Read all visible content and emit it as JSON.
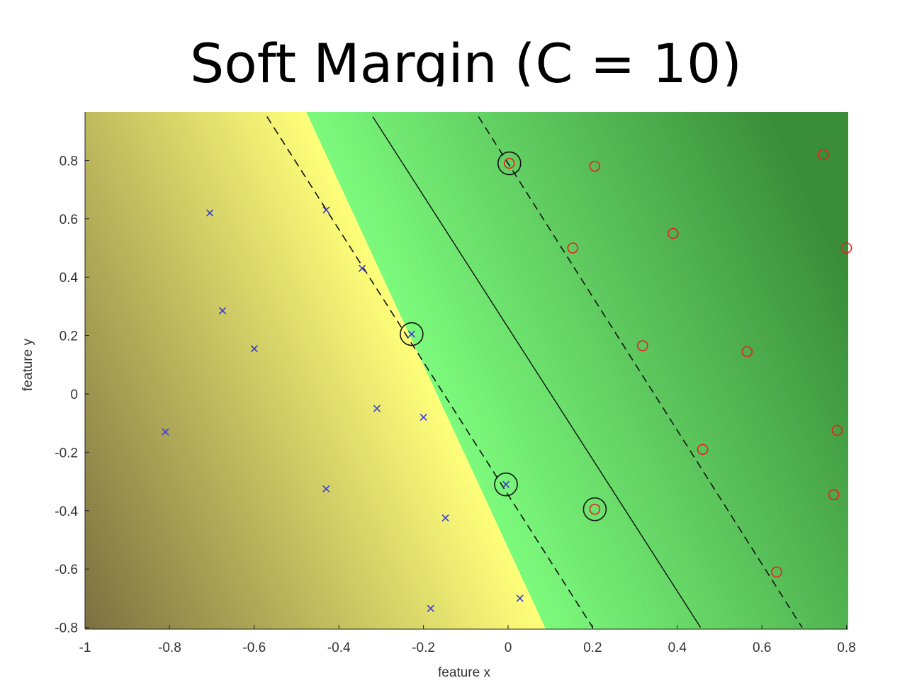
{
  "slide": {
    "title": "Soft Margin (C = 10)"
  },
  "chart_data": {
    "type": "scatter",
    "title": "Soft Margin (C = 10)",
    "xlabel": "feature x",
    "ylabel": "feature y",
    "xlim": [
      -1,
      0.8
    ],
    "ylim": [
      -0.8,
      0.95
    ],
    "xticks": [
      -1,
      -0.8,
      -0.6,
      -0.4,
      -0.2,
      0,
      0.2,
      0.4,
      0.6,
      0.8
    ],
    "yticks": [
      -0.8,
      -0.6,
      -0.4,
      -0.2,
      0,
      0.2,
      0.4,
      0.6,
      0.8
    ],
    "tick_labels_x": [
      "-1",
      "-0.8",
      "-0.6",
      "-0.4",
      "-0.2",
      "0",
      "0.2",
      "0.4",
      "0.6",
      "0.8"
    ],
    "tick_labels_y": [
      "-0.8",
      "-0.6",
      "-0.4",
      "-0.2",
      "0",
      "0.2",
      "0.4",
      "0.6",
      "0.8"
    ],
    "grid": false,
    "series": [
      {
        "marker": "x",
        "color": "#3a3ad0",
        "points": [
          [
            -0.705,
            0.62
          ],
          [
            -0.43,
            0.63
          ],
          [
            -0.345,
            0.43
          ],
          [
            -0.675,
            0.285
          ],
          [
            -0.6,
            0.155
          ],
          [
            -0.228,
            0.205
          ],
          [
            -0.31,
            -0.05
          ],
          [
            -0.2,
            -0.08
          ],
          [
            -0.81,
            -0.13
          ],
          [
            -0.43,
            -0.325
          ],
          [
            -0.005,
            -0.31
          ],
          [
            -0.148,
            -0.425
          ],
          [
            -0.183,
            -0.735
          ],
          [
            0.028,
            -0.7
          ]
        ]
      },
      {
        "marker": "o",
        "color": "#e82020",
        "points": [
          [
            0.003,
            0.79
          ],
          [
            0.205,
            0.78
          ],
          [
            0.39,
            0.55
          ],
          [
            0.153,
            0.5
          ],
          [
            0.745,
            0.82
          ],
          [
            0.8,
            0.5
          ],
          [
            0.318,
            0.165
          ],
          [
            0.565,
            0.145
          ],
          [
            0.778,
            -0.125
          ],
          [
            0.46,
            -0.19
          ],
          [
            0.77,
            -0.345
          ],
          [
            0.205,
            -0.395
          ],
          [
            0.635,
            -0.61
          ]
        ]
      }
    ],
    "support_vectors": [
      [
        0.003,
        0.79
      ],
      [
        -0.228,
        0.205
      ],
      [
        -0.005,
        -0.31
      ],
      [
        0.205,
        -0.395
      ]
    ],
    "decision_boundary": {
      "y_top_x": -0.32,
      "y_bottom_x": 0.455,
      "style": "solid"
    },
    "margin_lower": {
      "y_top_x": -0.57,
      "y_bottom_x": 0.2,
      "style": "dashed"
    },
    "margin_upper": {
      "y_top_x": -0.07,
      "y_bottom_x": 0.695,
      "style": "dashed"
    },
    "colors": {
      "far_negative": "#7a7040",
      "near_boundary_negative": "#ffff7a",
      "near_boundary_positive": "#7cfa7c",
      "far_positive": "#3a8e3a"
    }
  }
}
